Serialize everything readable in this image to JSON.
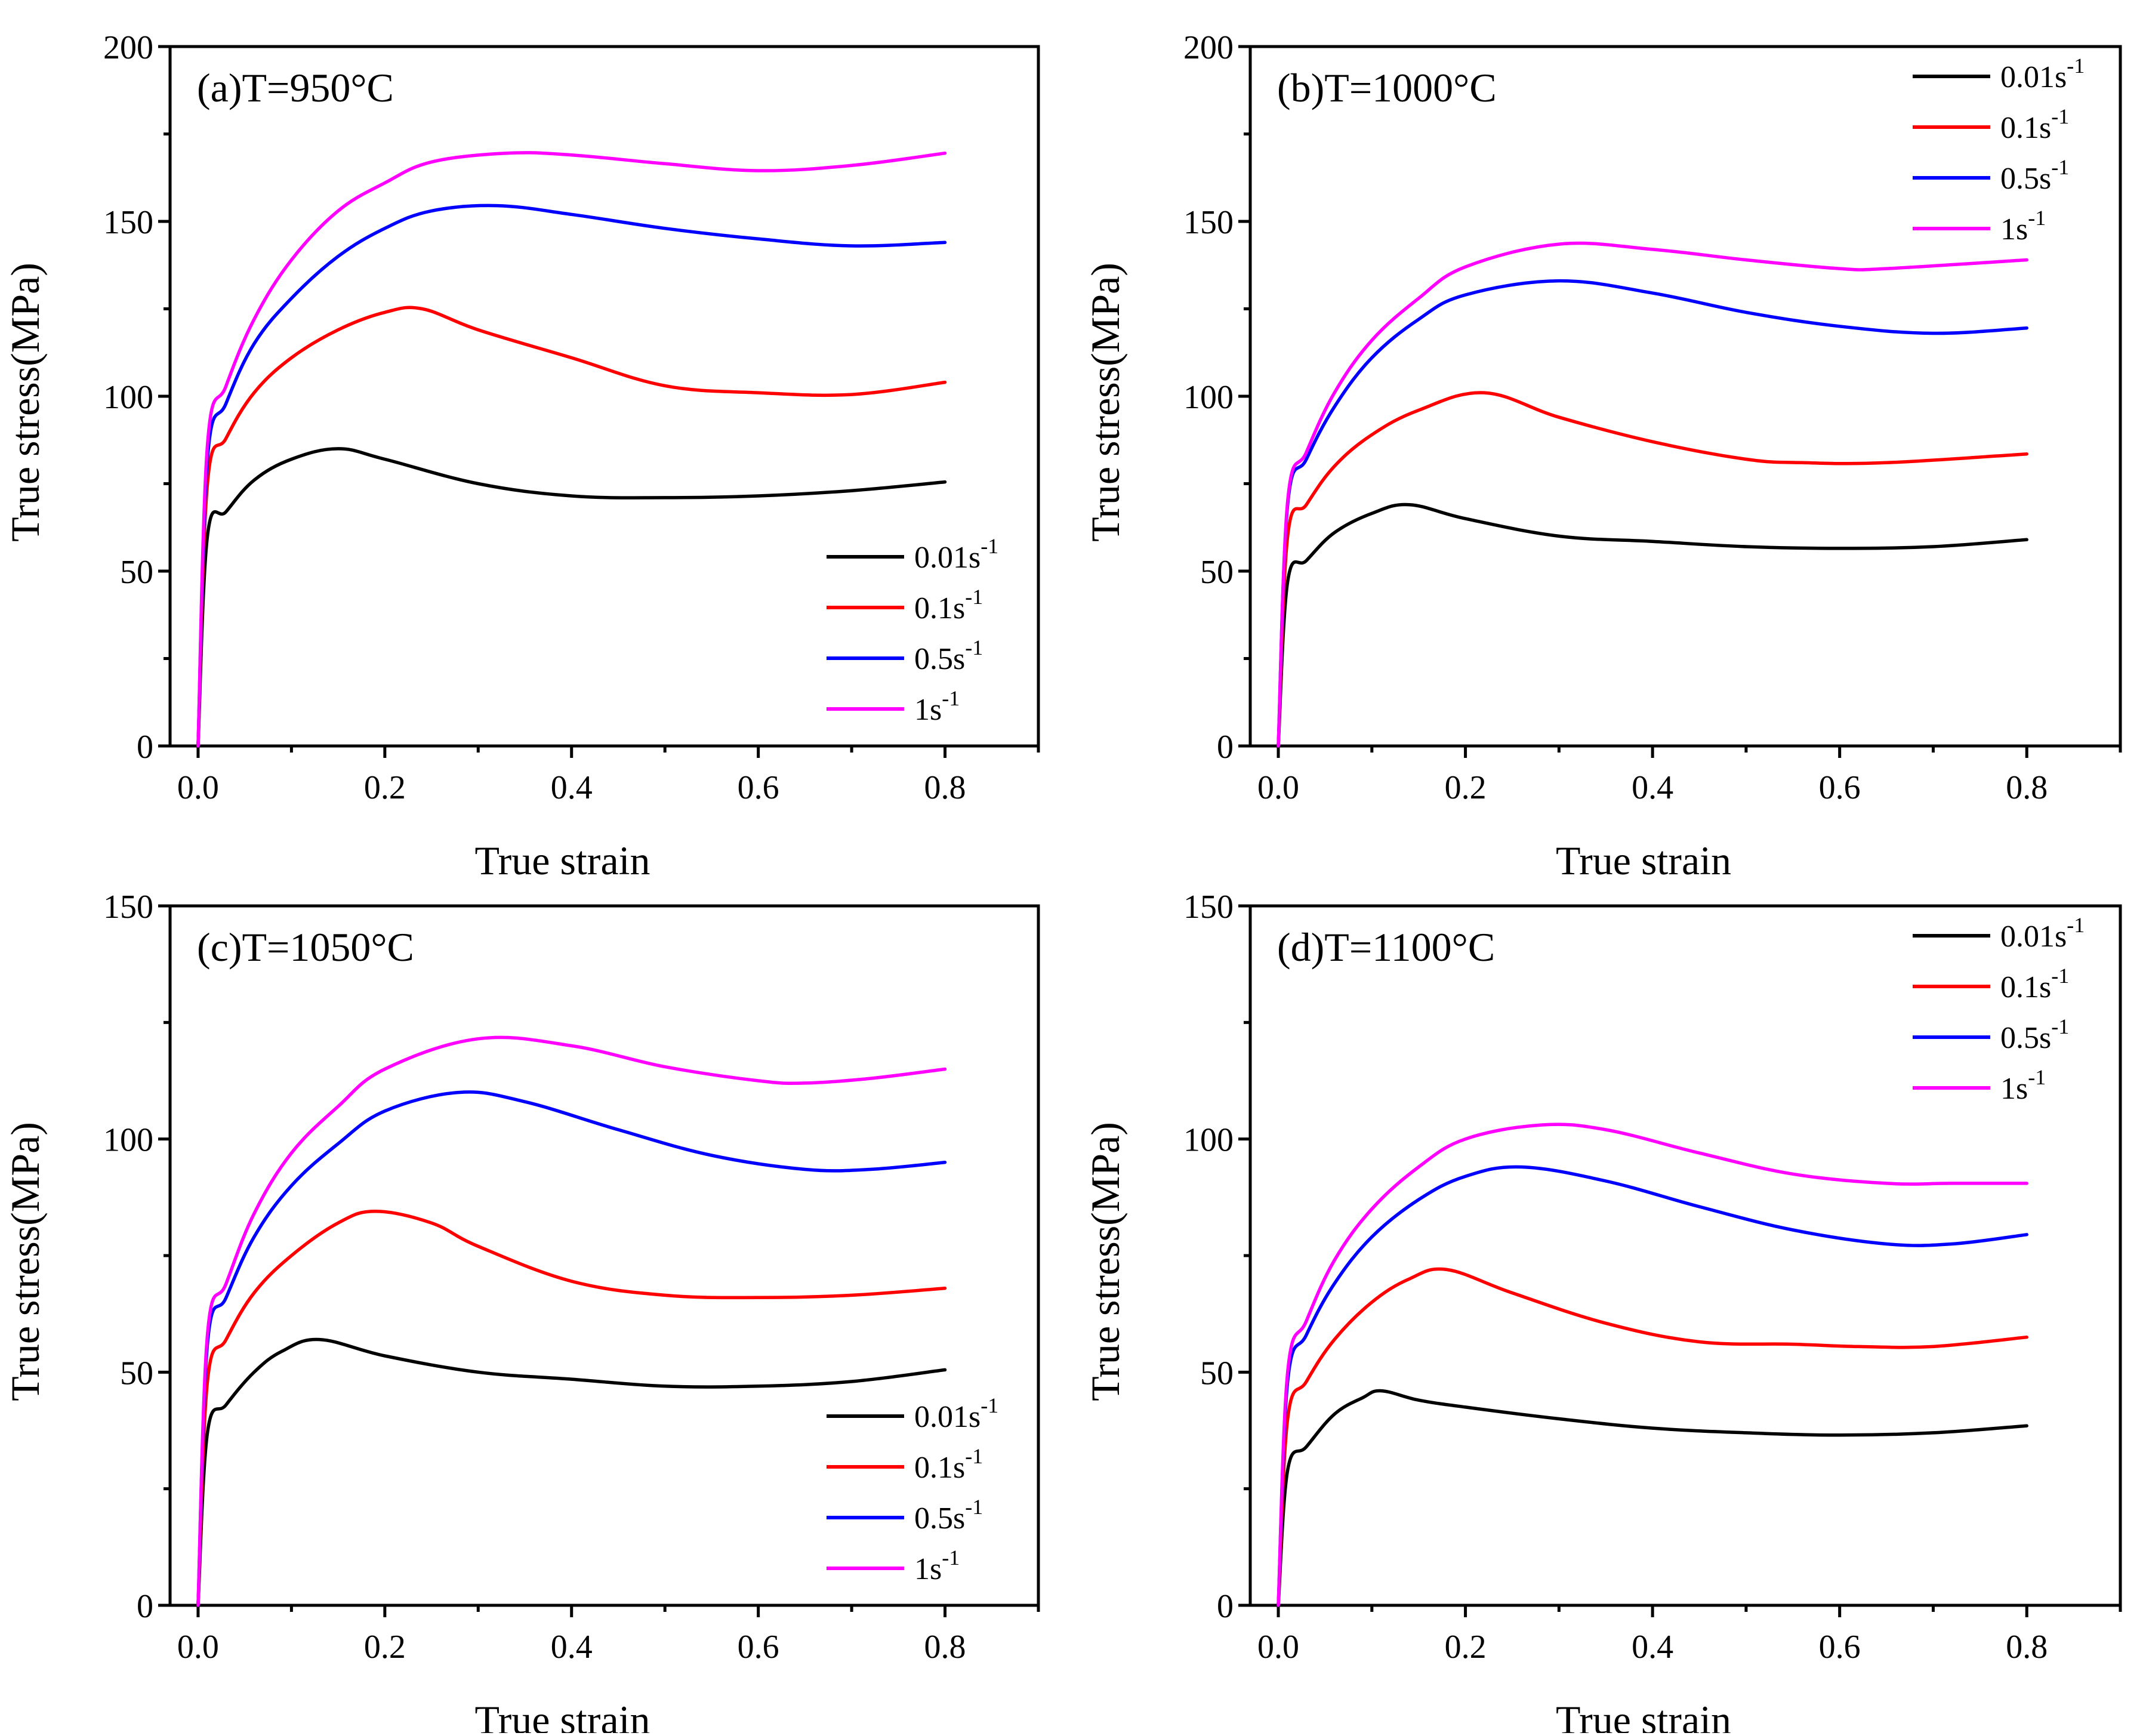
{
  "figure": {
    "x_axis_title": "True strain",
    "y_axis_title": "True stress(MPa)"
  },
  "series_colors": {
    "0.01s-1": "#000000",
    "0.1s-1": "#ff0000",
    "0.5s-1": "#0000ff",
    "1s-1": "#ff00ff"
  },
  "chart_data": [
    {
      "type": "line",
      "title": "(a)T=950°C",
      "xlabel": "True strain",
      "ylabel": "True stress(MPa)",
      "xlim": [
        -0.03,
        0.9
      ],
      "ylim": [
        0,
        200
      ],
      "xticks": [
        "0.0",
        "0.2",
        "0.4",
        "0.6",
        "0.8"
      ],
      "yticks": [
        "0",
        "50",
        "100",
        "150",
        "200"
      ],
      "legend_position": "bottom-right",
      "series": [
        {
          "name": "0.01s",
          "sup": "-1",
          "color": "#000000",
          "x": [
            0,
            0.01,
            0.03,
            0.06,
            0.1,
            0.15,
            0.2,
            0.3,
            0.4,
            0.5,
            0.6,
            0.7,
            0.8
          ],
          "y": [
            0,
            60,
            67,
            76,
            82,
            85,
            82,
            75,
            71.5,
            71,
            71.5,
            73,
            75.5
          ]
        },
        {
          "name": "0.1s",
          "sup": "-1",
          "color": "#ff0000",
          "x": [
            0,
            0.01,
            0.03,
            0.06,
            0.1,
            0.15,
            0.2,
            0.24,
            0.3,
            0.4,
            0.5,
            0.6,
            0.7,
            0.8
          ],
          "y": [
            0,
            75,
            88,
            101,
            111,
            119,
            124,
            125,
            119,
            111,
            103,
            101,
            100.5,
            104
          ]
        },
        {
          "name": "0.5s",
          "sup": "-1",
          "color": "#0000ff",
          "x": [
            0,
            0.01,
            0.03,
            0.06,
            0.1,
            0.15,
            0.2,
            0.25,
            0.32,
            0.4,
            0.5,
            0.6,
            0.7,
            0.8
          ],
          "y": [
            0,
            82,
            98,
            115,
            128,
            140,
            148,
            153,
            154.5,
            152,
            148,
            145,
            143,
            144
          ]
        },
        {
          "name": "1s",
          "sup": "-1",
          "color": "#ff00ff",
          "x": [
            0,
            0.01,
            0.03,
            0.06,
            0.1,
            0.15,
            0.2,
            0.25,
            0.33,
            0.4,
            0.5,
            0.6,
            0.7,
            0.8
          ],
          "y": [
            0,
            86,
            103,
            122,
            139,
            153,
            161,
            167,
            169.5,
            169,
            166.5,
            164.5,
            166,
            169.5
          ]
        }
      ]
    },
    {
      "type": "line",
      "title": "(b)T=1000°C",
      "xlabel": "True strain",
      "ylabel": "True stress(MPa)",
      "xlim": [
        -0.03,
        0.9
      ],
      "ylim": [
        0,
        200
      ],
      "xticks": [
        "0.0",
        "0.2",
        "0.4",
        "0.6",
        "0.8"
      ],
      "yticks": [
        "0",
        "50",
        "100",
        "150",
        "200"
      ],
      "legend_position": "top-right",
      "series": [
        {
          "name": "0.01s",
          "sup": "-1",
          "color": "#000000",
          "x": [
            0,
            0.01,
            0.03,
            0.06,
            0.1,
            0.14,
            0.2,
            0.3,
            0.4,
            0.5,
            0.6,
            0.7,
            0.8
          ],
          "y": [
            0,
            47,
            53,
            61,
            66.5,
            69,
            65,
            60,
            58.5,
            57,
            56.5,
            57,
            59
          ]
        },
        {
          "name": "0.1s",
          "sup": "-1",
          "color": "#ff0000",
          "x": [
            0,
            0.01,
            0.03,
            0.06,
            0.1,
            0.15,
            0.22,
            0.3,
            0.4,
            0.5,
            0.56,
            0.65,
            0.8
          ],
          "y": [
            0,
            60,
            69,
            80,
            89,
            96,
            101,
            94,
            87,
            82,
            81,
            81,
            83.5
          ]
        },
        {
          "name": "0.5s",
          "sup": "-1",
          "color": "#0000ff",
          "x": [
            0,
            0.01,
            0.03,
            0.06,
            0.1,
            0.15,
            0.2,
            0.3,
            0.4,
            0.5,
            0.6,
            0.7,
            0.8
          ],
          "y": [
            0,
            69,
            82,
            97,
            111,
            122,
            129,
            133,
            129.5,
            124,
            120,
            118,
            119.5
          ]
        },
        {
          "name": "1s",
          "sup": "-1",
          "color": "#ff00ff",
          "x": [
            0,
            0.01,
            0.03,
            0.06,
            0.1,
            0.15,
            0.2,
            0.3,
            0.4,
            0.5,
            0.6,
            0.65,
            0.8
          ],
          "y": [
            0,
            70,
            84,
            101,
            116,
            128,
            137,
            143.5,
            142,
            139,
            136.5,
            136.5,
            139
          ]
        }
      ]
    },
    {
      "type": "line",
      "title": "(c)T=1050°C",
      "xlabel": "True strain",
      "ylabel": "True stress(MPa)",
      "xlim": [
        -0.03,
        0.9
      ],
      "ylim": [
        0,
        150
      ],
      "xticks": [
        "0.0",
        "0.2",
        "0.4",
        "0.6",
        "0.8"
      ],
      "yticks": [
        "0",
        "50",
        "100",
        "150"
      ],
      "legend_position": "bottom-right",
      "series": [
        {
          "name": "0.01s",
          "sup": "-1",
          "color": "#000000",
          "x": [
            0,
            0.01,
            0.03,
            0.06,
            0.09,
            0.13,
            0.2,
            0.3,
            0.4,
            0.5,
            0.6,
            0.7,
            0.8
          ],
          "y": [
            0,
            37,
            43,
            50,
            54.5,
            57,
            53.5,
            50,
            48.5,
            47,
            47,
            48,
            50.5
          ]
        },
        {
          "name": "0.1s",
          "sup": "-1",
          "color": "#ff0000",
          "x": [
            0,
            0.01,
            0.03,
            0.06,
            0.1,
            0.15,
            0.19,
            0.25,
            0.3,
            0.4,
            0.5,
            0.6,
            0.7,
            0.8
          ],
          "y": [
            0,
            48,
            57,
            67,
            75,
            82,
            84.5,
            82,
            77,
            69.5,
            66.5,
            66,
            66.5,
            68
          ]
        },
        {
          "name": "0.5s",
          "sup": "-1",
          "color": "#0000ff",
          "x": [
            0,
            0.01,
            0.03,
            0.06,
            0.1,
            0.15,
            0.2,
            0.28,
            0.35,
            0.45,
            0.55,
            0.65,
            0.72,
            0.8
          ],
          "y": [
            0,
            56,
            66,
            79,
            90,
            99,
            106,
            110,
            108,
            102,
            96.5,
            93.5,
            93.5,
            95
          ]
        },
        {
          "name": "1s",
          "sup": "-1",
          "color": "#ff00ff",
          "x": [
            0,
            0.01,
            0.03,
            0.06,
            0.1,
            0.15,
            0.2,
            0.3,
            0.4,
            0.5,
            0.6,
            0.65,
            0.72,
            0.8
          ],
          "y": [
            0,
            58,
            69,
            84,
            97,
            107,
            115,
            121.5,
            120,
            115.5,
            112.5,
            112,
            113,
            115
          ]
        }
      ]
    },
    {
      "type": "line",
      "title": "(d)T=1100°C",
      "xlabel": "True strain",
      "ylabel": "True stress(MPa)",
      "xlim": [
        -0.03,
        0.9
      ],
      "ylim": [
        0,
        150
      ],
      "xticks": [
        "0.0",
        "0.2",
        "0.4",
        "0.6",
        "0.8"
      ],
      "yticks": [
        "0",
        "50",
        "100",
        "150"
      ],
      "legend_position": "top-right",
      "series": [
        {
          "name": "0.01s",
          "sup": "-1",
          "color": "#000000",
          "x": [
            0,
            0.01,
            0.03,
            0.06,
            0.09,
            0.11,
            0.15,
            0.2,
            0.3,
            0.4,
            0.5,
            0.6,
            0.7,
            0.8
          ],
          "y": [
            0,
            29,
            34,
            41,
            44.5,
            46,
            44,
            42.5,
            40,
            38,
            37,
            36.5,
            37,
            38.5
          ]
        },
        {
          "name": "0.1s",
          "sup": "-1",
          "color": "#ff0000",
          "x": [
            0,
            0.01,
            0.03,
            0.06,
            0.1,
            0.14,
            0.18,
            0.25,
            0.35,
            0.45,
            0.55,
            0.62,
            0.7,
            0.8
          ],
          "y": [
            0,
            40,
            48,
            57,
            65,
            70,
            72,
            67,
            60.5,
            56.5,
            56,
            55.5,
            55.5,
            57.5
          ]
        },
        {
          "name": "0.5s",
          "sup": "-1",
          "color": "#0000ff",
          "x": [
            0,
            0.01,
            0.03,
            0.06,
            0.1,
            0.15,
            0.2,
            0.26,
            0.35,
            0.45,
            0.55,
            0.65,
            0.72,
            0.8
          ],
          "y": [
            0,
            48,
            58,
            69,
            79,
            87,
            92,
            94,
            91,
            85.5,
            80.5,
            77.5,
            77.5,
            79.5
          ]
        },
        {
          "name": "1s",
          "sup": "-1",
          "color": "#ff00ff",
          "x": [
            0,
            0.01,
            0.03,
            0.06,
            0.1,
            0.15,
            0.2,
            0.28,
            0.35,
            0.45,
            0.55,
            0.65,
            0.72,
            0.8
          ],
          "y": [
            0,
            50,
            61,
            74,
            85,
            94,
            100,
            103,
            102,
            97,
            92.5,
            90.5,
            90.5,
            90.5
          ]
        }
      ]
    }
  ]
}
